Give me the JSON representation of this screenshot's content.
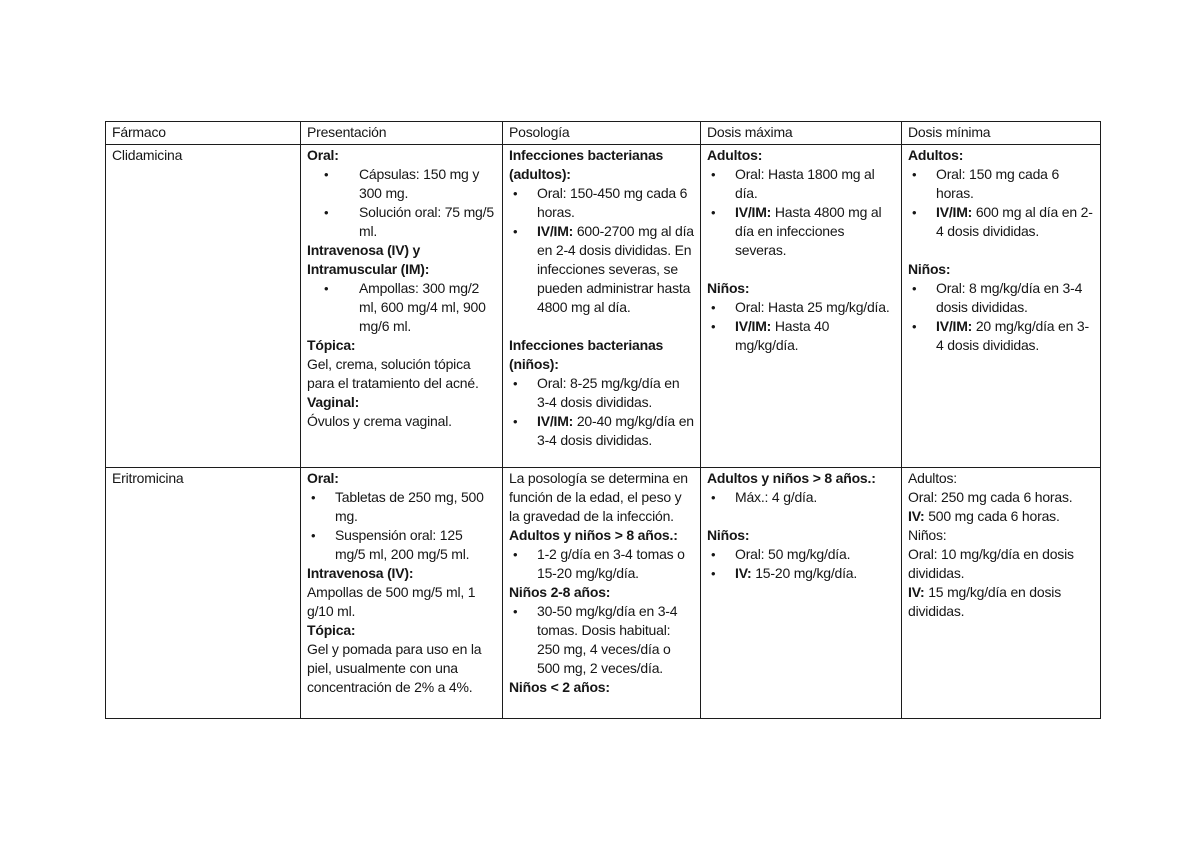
{
  "page": {
    "background_color": "#ffffff",
    "text_color": "#161616",
    "border_color": "#1c1c1c",
    "bullet_glyph": "•"
  },
  "table": {
    "headers": [
      "Fármaco",
      "Presentación",
      "Posología",
      "Dosis máxima",
      "Dosis mínima"
    ],
    "rows": [
      {
        "name": "clidamicina",
        "farmaco": "Clidamicina",
        "cells": {
          "presentacion": [
            {
              "type": "p",
              "runs": [
                {
                  "text": "Oral:",
                  "bold": true
                }
              ]
            },
            {
              "type": "bullet",
              "indent": "deep",
              "runs": [
                {
                  "text": "Cápsulas: 150 mg y 300 mg.",
                  "bold": false
                }
              ]
            },
            {
              "type": "bullet",
              "indent": "deep",
              "runs": [
                {
                  "text": "Solución oral: 75 mg/5 ml.",
                  "bold": false
                }
              ]
            },
            {
              "type": "p",
              "runs": [
                {
                  "text": "Intravenosa (IV) y Intramuscular (IM):",
                  "bold": true
                }
              ]
            },
            {
              "type": "bullet",
              "indent": "deep",
              "runs": [
                {
                  "text": "Ampollas: 300 mg/2 ml, 600 mg/4 ml, 900 mg/6 ml.",
                  "bold": false
                }
              ]
            },
            {
              "type": "p",
              "runs": [
                {
                  "text": "Tópica:",
                  "bold": true
                }
              ]
            },
            {
              "type": "p",
              "runs": [
                {
                  "text": "Gel, crema, solución tópica para el tratamiento del acné.",
                  "bold": false
                }
              ]
            },
            {
              "type": "p",
              "runs": [
                {
                  "text": "Vaginal:",
                  "bold": true
                }
              ]
            },
            {
              "type": "p",
              "runs": [
                {
                  "text": "Óvulos y crema vaginal.",
                  "bold": false
                }
              ]
            }
          ],
          "posologia": [
            {
              "type": "p",
              "runs": [
                {
                  "text": "Infecciones bacterianas (adultos):",
                  "bold": true
                }
              ]
            },
            {
              "type": "bullet",
              "indent": "shallow",
              "runs": [
                {
                  "text": "Oral: 150-450 mg cada 6 horas.",
                  "bold": false
                }
              ]
            },
            {
              "type": "bullet",
              "indent": "shallow",
              "runs": [
                {
                  "text": "IV/IM:",
                  "bold": true
                },
                {
                  "text": " 600-2700 mg al día en 2-4 dosis divididas. En infecciones severas, se pueden administrar hasta 4800 mg al día.",
                  "bold": false
                }
              ]
            },
            {
              "type": "spacer"
            },
            {
              "type": "p",
              "runs": [
                {
                  "text": "Infecciones bacterianas (niños):",
                  "bold": true
                }
              ]
            },
            {
              "type": "bullet",
              "indent": "shallow",
              "runs": [
                {
                  "text": "Oral: 8-25 mg/kg/día en 3-4 dosis divididas.",
                  "bold": false
                }
              ]
            },
            {
              "type": "bullet",
              "indent": "shallow",
              "runs": [
                {
                  "text": "IV/IM:",
                  "bold": true
                },
                {
                  "text": " 20-40 mg/kg/día en 3-4 dosis divididas.",
                  "bold": false
                }
              ]
            }
          ],
          "dosis_maxima": [
            {
              "type": "p",
              "runs": [
                {
                  "text": "Adultos:",
                  "bold": true
                }
              ]
            },
            {
              "type": "bullet",
              "indent": "shallow",
              "runs": [
                {
                  "text": "Oral: Hasta 1800 mg al día.",
                  "bold": false
                }
              ]
            },
            {
              "type": "bullet",
              "indent": "shallow",
              "runs": [
                {
                  "text": "IV/IM:",
                  "bold": true
                },
                {
                  "text": " Hasta 4800 mg al día en infecciones severas.",
                  "bold": false
                }
              ]
            },
            {
              "type": "spacer"
            },
            {
              "type": "p",
              "runs": [
                {
                  "text": "Niños:",
                  "bold": true
                }
              ]
            },
            {
              "type": "bullet",
              "indent": "shallow",
              "runs": [
                {
                  "text": "Oral: Hasta 25 mg/kg/día.",
                  "bold": false
                }
              ]
            },
            {
              "type": "bullet",
              "indent": "shallow",
              "runs": [
                {
                  "text": "IV/IM:",
                  "bold": true
                },
                {
                  "text": " Hasta 40 mg/kg/día.",
                  "bold": false
                }
              ]
            }
          ],
          "dosis_minima": [
            {
              "type": "p",
              "runs": [
                {
                  "text": "Adultos:",
                  "bold": true
                }
              ]
            },
            {
              "type": "bullet",
              "indent": "shallow",
              "runs": [
                {
                  "text": "Oral: 150 mg cada 6 horas.",
                  "bold": false
                }
              ]
            },
            {
              "type": "bullet",
              "indent": "shallow",
              "runs": [
                {
                  "text": "IV/IM:",
                  "bold": true
                },
                {
                  "text": " 600 mg al día en 2-4 dosis divididas.",
                  "bold": false
                }
              ]
            },
            {
              "type": "spacer"
            },
            {
              "type": "p",
              "runs": [
                {
                  "text": "Niños:",
                  "bold": true
                }
              ]
            },
            {
              "type": "bullet",
              "indent": "shallow",
              "runs": [
                {
                  "text": "Oral: 8 mg/kg/día en 3-4 dosis divididas.",
                  "bold": false
                }
              ]
            },
            {
              "type": "bullet",
              "indent": "shallow",
              "runs": [
                {
                  "text": "IV/IM:",
                  "bold": true
                },
                {
                  "text": " 20 mg/kg/día en 3-4 dosis divididas.",
                  "bold": false
                }
              ]
            }
          ]
        }
      },
      {
        "name": "eritromicina",
        "farmaco": "Eritromicina",
        "cells": {
          "presentacion": [
            {
              "type": "p",
              "runs": [
                {
                  "text": "Oral:",
                  "bold": true
                }
              ]
            },
            {
              "type": "bullet",
              "indent": "shallow",
              "runs": [
                {
                  "text": "Tabletas de 250 mg, 500 mg.",
                  "bold": false
                }
              ]
            },
            {
              "type": "bullet",
              "indent": "shallow",
              "runs": [
                {
                  "text": "Suspensión oral: 125 mg/5 ml, 200 mg/5 ml.",
                  "bold": false
                }
              ]
            },
            {
              "type": "p",
              "runs": [
                {
                  "text": "Intravenosa (IV):",
                  "bold": true
                }
              ]
            },
            {
              "type": "p",
              "runs": [
                {
                  "text": "Ampollas de 500 mg/5 ml, 1 g/10 ml.",
                  "bold": false
                }
              ]
            },
            {
              "type": "p",
              "runs": [
                {
                  "text": "Tópica:",
                  "bold": true
                }
              ]
            },
            {
              "type": "p",
              "runs": [
                {
                  "text": "Gel y pomada para uso en la piel, usualmente con una concentración de 2% a 4%.",
                  "bold": false
                }
              ]
            }
          ],
          "posologia": [
            {
              "type": "p",
              "runs": [
                {
                  "text": "La posología se determina en función de la edad, el peso y la gravedad de la infección.",
                  "bold": false
                }
              ]
            },
            {
              "type": "p",
              "runs": [
                {
                  "text": "Adultos y niños > 8 años.:",
                  "bold": true
                }
              ]
            },
            {
              "type": "bullet",
              "indent": "shallow",
              "runs": [
                {
                  "text": "1-2 g/día en 3-4 tomas o 15-20 mg/kg/día.",
                  "bold": false
                }
              ]
            },
            {
              "type": "p",
              "runs": [
                {
                  "text": "Niños 2-8 años:",
                  "bold": true
                }
              ]
            },
            {
              "type": "bullet",
              "indent": "shallow",
              "runs": [
                {
                  "text": "30-50 mg/kg/día en 3-4 tomas. Dosis habitual: 250 mg, 4 veces/día o 500 mg, 2 veces/día.",
                  "bold": false
                }
              ]
            },
            {
              "type": "p",
              "runs": [
                {
                  "text": "Niños < 2 años:",
                  "bold": true
                }
              ]
            }
          ],
          "dosis_maxima": [
            {
              "type": "p",
              "runs": [
                {
                  "text": "Adultos y niños > 8 años.:",
                  "bold": true
                }
              ]
            },
            {
              "type": "bullet",
              "indent": "shallow",
              "runs": [
                {
                  "text": "Máx.: 4 g/día.",
                  "bold": false
                }
              ]
            },
            {
              "type": "spacer"
            },
            {
              "type": "p",
              "runs": [
                {
                  "text": "Niños:",
                  "bold": true
                }
              ]
            },
            {
              "type": "bullet",
              "indent": "shallow",
              "runs": [
                {
                  "text": "Oral: 50 mg/kg/día.",
                  "bold": false
                }
              ]
            },
            {
              "type": "bullet",
              "indent": "shallow",
              "runs": [
                {
                  "text": "IV:",
                  "bold": true
                },
                {
                  "text": " 15-20 mg/kg/día.",
                  "bold": false
                }
              ]
            }
          ],
          "dosis_minima": [
            {
              "type": "p",
              "runs": [
                {
                  "text": "Adultos:",
                  "bold": false
                }
              ]
            },
            {
              "type": "p",
              "runs": [
                {
                  "text": "Oral: 250 mg cada 6 horas.",
                  "bold": false
                }
              ]
            },
            {
              "type": "p",
              "runs": [
                {
                  "text": "IV:",
                  "bold": true
                },
                {
                  "text": " 500 mg cada 6 horas.",
                  "bold": false
                }
              ]
            },
            {
              "type": "p",
              "runs": [
                {
                  "text": "Niños:",
                  "bold": false
                }
              ]
            },
            {
              "type": "p",
              "runs": [
                {
                  "text": "Oral: 10 mg/kg/día en dosis divididas.",
                  "bold": false
                }
              ]
            },
            {
              "type": "p",
              "runs": [
                {
                  "text": "IV:",
                  "bold": true
                },
                {
                  "text": " 15 mg/kg/día en dosis divididas.",
                  "bold": false
                }
              ]
            }
          ]
        }
      }
    ]
  }
}
